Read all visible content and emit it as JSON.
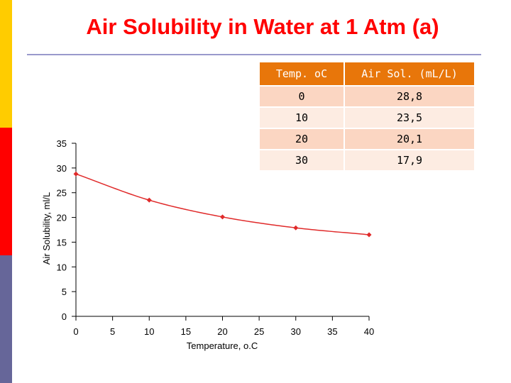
{
  "colors": {
    "sidebar": [
      "#ffcc00",
      "#ff0000",
      "#666699"
    ],
    "title": "#ff0000",
    "title_rule": "#9999cc",
    "series": "#e02a2a",
    "table_header": "#e8760a",
    "table_row_odd": "#fbd6c2",
    "table_row_even": "#fdece2"
  },
  "title": "Air Solubility in Water at 1 Atm (a)",
  "table": {
    "headers": [
      "Temp. oC",
      "Air Sol. (mL/L)"
    ],
    "rows": [
      [
        "0",
        "28,8"
      ],
      [
        "10",
        "23,5"
      ],
      [
        "20",
        "20,1"
      ],
      [
        "30",
        "17,9"
      ]
    ]
  },
  "chart_data": {
    "type": "line",
    "title": "",
    "xlabel": "Temperature, o.C",
    "ylabel": "Air Solubility, ml/L",
    "xlim": [
      0,
      40
    ],
    "ylim": [
      0,
      35
    ],
    "xticks": [
      0,
      5,
      10,
      15,
      20,
      25,
      30,
      35,
      40
    ],
    "yticks": [
      0,
      5,
      10,
      15,
      20,
      25,
      30,
      35
    ],
    "grid": false,
    "legend": "none",
    "series": [
      {
        "x": [
          0,
          10,
          20,
          30,
          40
        ],
        "y": [
          28.8,
          23.5,
          20.1,
          17.9,
          16.5
        ]
      }
    ]
  }
}
